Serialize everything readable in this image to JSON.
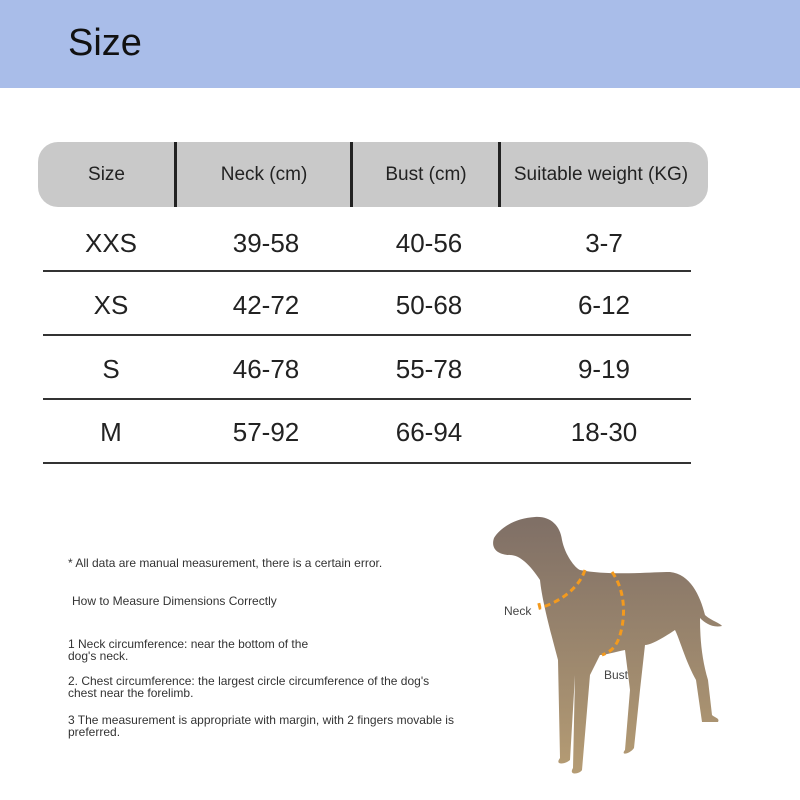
{
  "banner": {
    "title": "Size"
  },
  "table": {
    "headers": [
      "Size",
      "Neck (cm)",
      "Bust (cm)",
      "Suitable weight (KG)"
    ],
    "rows": [
      [
        "XXS",
        "39-58",
        "40-56",
        "3-7"
      ],
      [
        "XS",
        "42-72",
        "50-68",
        "6-12"
      ],
      [
        "S",
        "46-78",
        "55-78",
        "9-19"
      ],
      [
        "M",
        "57-92",
        "66-94",
        "18-30"
      ]
    ]
  },
  "notes": {
    "disclaimer": "* All data are manual measurement, there is a certain error.",
    "heading": "How to Measure Dimensions Correctly",
    "item1_l1": "1 Neck circumference: near the bottom of the",
    "item1_l2": "dog's neck.",
    "item2_l1": "2. Chest circumference: the largest circle circumference of the dog's",
    "item2_l2": "chest near the forelimb.",
    "item3_l1": "3 The measurement is appropriate with margin, with 2 fingers movable is",
    "item3_l2": "preferred."
  },
  "diagram": {
    "neck_label": "Neck",
    "bust_label": "Bust",
    "accent": "#f39a1e",
    "dog_color": "#8a7a6a"
  }
}
